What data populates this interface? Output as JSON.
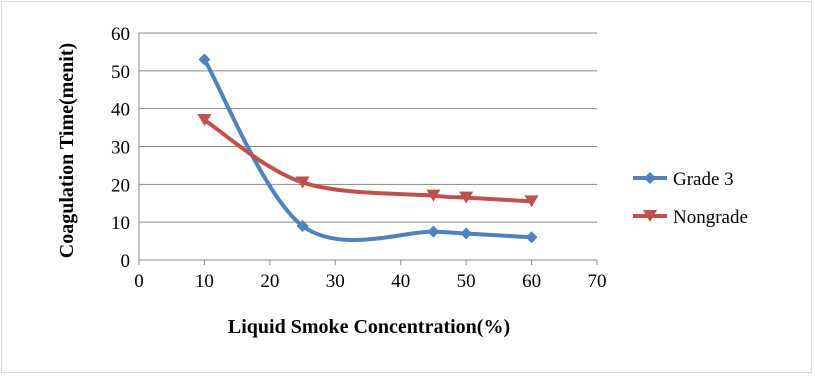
{
  "chart_data": {
    "type": "line",
    "title": "",
    "xlabel": "Liquid Smoke Concentration(%)",
    "ylabel": "Coagulation Time(menit)",
    "xlim": [
      0,
      70
    ],
    "ylim": [
      0,
      60
    ],
    "x_ticks": [
      "0",
      "10",
      "20",
      "30",
      "40",
      "50",
      "60",
      "70"
    ],
    "y_ticks": [
      "0",
      "10",
      "20",
      "30",
      "40",
      "50",
      "60"
    ],
    "grid": "horizontal",
    "legend_position": "right",
    "series": [
      {
        "name": "Grade 3",
        "color": "#4f81bd",
        "marker": "diamond",
        "x": [
          10,
          25,
          45,
          50,
          60
        ],
        "y": [
          53,
          9,
          7.5,
          7,
          6
        ]
      },
      {
        "name": "Nongrade",
        "color": "#c0504d",
        "marker": "triangle-down",
        "x": [
          10,
          25,
          45,
          50,
          60
        ],
        "y": [
          37,
          20.5,
          17,
          16.5,
          15.5
        ]
      }
    ]
  }
}
